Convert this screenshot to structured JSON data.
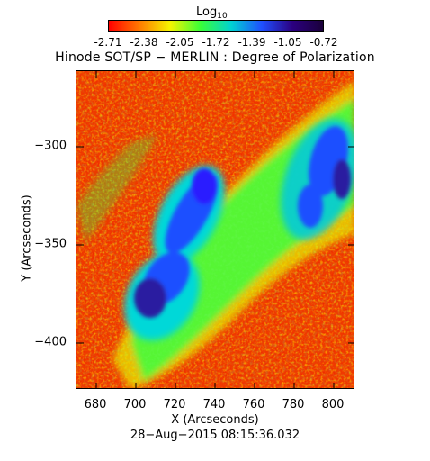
{
  "colorbar": {
    "title_main": "Log",
    "title_sub": "10",
    "ticks": [
      "-2.71",
      "-2.38",
      "-2.05",
      "-1.72",
      "-1.39",
      "-1.05",
      "-0.72"
    ],
    "colors": [
      "#ff0000",
      "#ff7a00",
      "#f5f500",
      "#38ff38",
      "#00d2d2",
      "#1f4fff",
      "#2b0080",
      "#1a003a"
    ]
  },
  "title": "Hinode SOT/SP − MERLIN : Degree of Polarization",
  "axes": {
    "xlabel": "X (Arcseconds)",
    "ylabel": "Y (Arcseconds)",
    "x_ticks": [
      "680",
      "700",
      "720",
      "740",
      "760",
      "780",
      "800"
    ],
    "y_ticks": [
      "−300",
      "−350",
      "−400"
    ]
  },
  "timestamp": "28−Aug−2015 08:15:36.032"
}
